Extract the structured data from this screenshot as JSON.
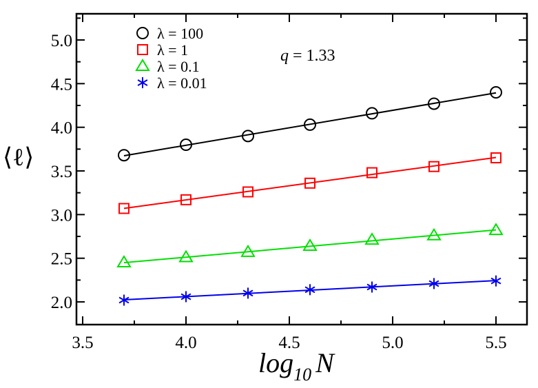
{
  "chart_data": {
    "type": "line",
    "title": "",
    "xlabel": "log10 N",
    "xlabel_parts": {
      "main": "log",
      "sub": "10",
      "var": "N"
    },
    "ylabel": "⟨ℓ⟩",
    "xlim": [
      3.47,
      5.65
    ],
    "ylim": [
      1.74,
      5.3
    ],
    "x_ticks": [
      3.5,
      4.0,
      4.5,
      5.0,
      5.5
    ],
    "x_tick_labels": [
      "3.5",
      "4.0",
      "4.5",
      "5.0",
      "5.5"
    ],
    "x_minor_ticks": [
      3.75,
      4.25,
      4.75,
      5.25
    ],
    "y_ticks": [
      2.0,
      2.5,
      3.0,
      3.5,
      4.0,
      4.5,
      5.0
    ],
    "y_tick_labels": [
      "2.0",
      "2.5",
      "3.0",
      "3.5",
      "4.0",
      "4.5",
      "5.0"
    ],
    "y_minor_ticks": [
      2.25,
      2.75,
      3.25,
      3.75,
      4.25,
      4.75,
      5.25
    ],
    "grid": false,
    "legend_position": "top-left",
    "annotation": "q = 1.33",
    "annotation_parts": {
      "var": "q",
      "rest": " = 1.33"
    },
    "x": [
      3.7,
      4.0,
      4.3,
      4.6,
      4.9,
      5.2,
      5.5
    ],
    "series": [
      {
        "name": "λ = 100",
        "marker": "circle",
        "color": "#000000",
        "values": [
          3.68,
          3.8,
          3.9,
          4.03,
          4.16,
          4.27,
          4.4
        ]
      },
      {
        "name": "λ = 1",
        "marker": "square",
        "color": "#ff0000",
        "values": [
          3.07,
          3.17,
          3.26,
          3.36,
          3.48,
          3.55,
          3.65
        ]
      },
      {
        "name": "λ = 0.1",
        "marker": "triangle",
        "color": "#00e000",
        "values": [
          2.45,
          2.51,
          2.57,
          2.64,
          2.71,
          2.76,
          2.82
        ]
      },
      {
        "name": "λ = 0.01",
        "marker": "asterisk",
        "color": "#0000ee",
        "values": [
          2.02,
          2.06,
          2.1,
          2.14,
          2.17,
          2.21,
          2.24
        ]
      }
    ]
  }
}
